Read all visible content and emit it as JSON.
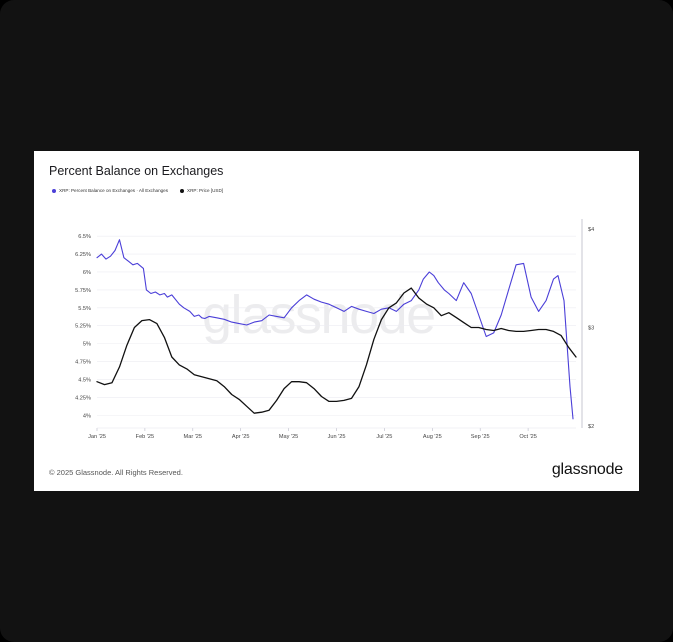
{
  "card": {
    "title": "Percent Balance on Exchanges",
    "footer": "© 2025 Glassnode. All Rights Reserved.",
    "logo": "glassnode",
    "watermark": "glassnode"
  },
  "colors": {
    "series1": "#4b3fd8",
    "series2": "#111111",
    "grid": "#ececf2",
    "axis": "#b9b9c7"
  },
  "chart_data": {
    "type": "line",
    "title": "Percent Balance on Exchanges",
    "x_ticks": [
      "Jan '25",
      "Feb '25",
      "Mar '25",
      "Apr '25",
      "May '25",
      "Jun '25",
      "Jul '25",
      "Aug '25",
      "Sep '25",
      "Oct '25"
    ],
    "y_left_ticks": [
      "6.5%",
      "6.25%",
      "6%",
      "5.75%",
      "5.5%",
      "5.25%",
      "5%",
      "4.75%",
      "4.5%",
      "4.25%",
      "4%"
    ],
    "y_right_ticks": [
      "$4",
      "$3",
      "$2"
    ],
    "ylim_left": [
      3.85,
      6.6
    ],
    "ylim_right": [
      2,
      4
    ],
    "x_range_days": [
      0,
      320
    ],
    "grid": true,
    "legend_position": "top-left",
    "series": [
      {
        "name": "XRP: Percent Balance on Exchanges · All Exchanges",
        "axis": "left",
        "x": [
          0,
          3,
          6,
          9,
          12,
          15,
          18,
          21,
          24,
          27,
          31,
          33,
          36,
          39,
          42,
          45,
          47,
          50,
          55,
          58,
          62,
          65,
          68,
          70,
          72,
          75,
          80,
          85,
          90,
          95,
          100,
          105,
          110,
          115,
          120,
          125,
          130,
          135,
          140,
          145,
          150,
          155,
          160,
          165,
          170,
          175,
          180,
          185,
          190,
          195,
          200,
          205,
          210,
          215,
          218,
          222,
          225,
          228,
          232,
          235,
          240,
          245,
          250,
          255,
          260,
          265,
          270,
          275,
          280,
          285,
          290,
          295,
          300,
          305,
          308,
          312,
          314,
          316,
          318
        ],
        "y": [
          6.2,
          6.25,
          6.18,
          6.22,
          6.3,
          6.45,
          6.2,
          6.15,
          6.1,
          6.12,
          6.05,
          5.75,
          5.7,
          5.72,
          5.68,
          5.7,
          5.65,
          5.68,
          5.55,
          5.5,
          5.45,
          5.38,
          5.4,
          5.36,
          5.35,
          5.38,
          5.36,
          5.34,
          5.3,
          5.28,
          5.26,
          5.3,
          5.32,
          5.4,
          5.38,
          5.36,
          5.5,
          5.6,
          5.68,
          5.62,
          5.58,
          5.55,
          5.5,
          5.45,
          5.52,
          5.48,
          5.45,
          5.42,
          5.48,
          5.5,
          5.45,
          5.55,
          5.6,
          5.75,
          5.9,
          6.0,
          5.95,
          5.85,
          5.75,
          5.7,
          5.6,
          5.85,
          5.7,
          5.4,
          5.1,
          5.15,
          5.4,
          5.75,
          6.1,
          6.12,
          5.65,
          5.45,
          5.6,
          5.9,
          5.95,
          5.6,
          5.0,
          4.4,
          3.95
        ]
      },
      {
        "name": "XRP: Price [USD]",
        "axis": "right",
        "x": [
          0,
          5,
          10,
          15,
          20,
          25,
          30,
          35,
          40,
          45,
          50,
          55,
          60,
          65,
          70,
          75,
          80,
          85,
          90,
          95,
          100,
          105,
          110,
          115,
          120,
          125,
          130,
          135,
          140,
          145,
          150,
          155,
          160,
          165,
          170,
          175,
          180,
          185,
          190,
          195,
          200,
          205,
          210,
          215,
          220,
          225,
          230,
          235,
          240,
          245,
          250,
          255,
          260,
          265,
          270,
          275,
          280,
          285,
          290,
          295,
          300,
          305,
          310,
          315,
          320
        ],
        "y": [
          2.45,
          2.42,
          2.44,
          2.6,
          2.82,
          3.0,
          3.07,
          3.08,
          3.04,
          2.9,
          2.7,
          2.62,
          2.58,
          2.52,
          2.5,
          2.48,
          2.46,
          2.4,
          2.32,
          2.27,
          2.2,
          2.13,
          2.14,
          2.16,
          2.26,
          2.38,
          2.45,
          2.45,
          2.44,
          2.38,
          2.3,
          2.25,
          2.25,
          2.26,
          2.28,
          2.4,
          2.62,
          2.88,
          3.08,
          3.2,
          3.25,
          3.35,
          3.4,
          3.3,
          3.24,
          3.2,
          3.12,
          3.15,
          3.1,
          3.05,
          3.0,
          3.0,
          2.98,
          2.97,
          2.99,
          2.97,
          2.96,
          2.96,
          2.97,
          2.98,
          2.98,
          2.96,
          2.92,
          2.8,
          2.7
        ]
      }
    ]
  }
}
